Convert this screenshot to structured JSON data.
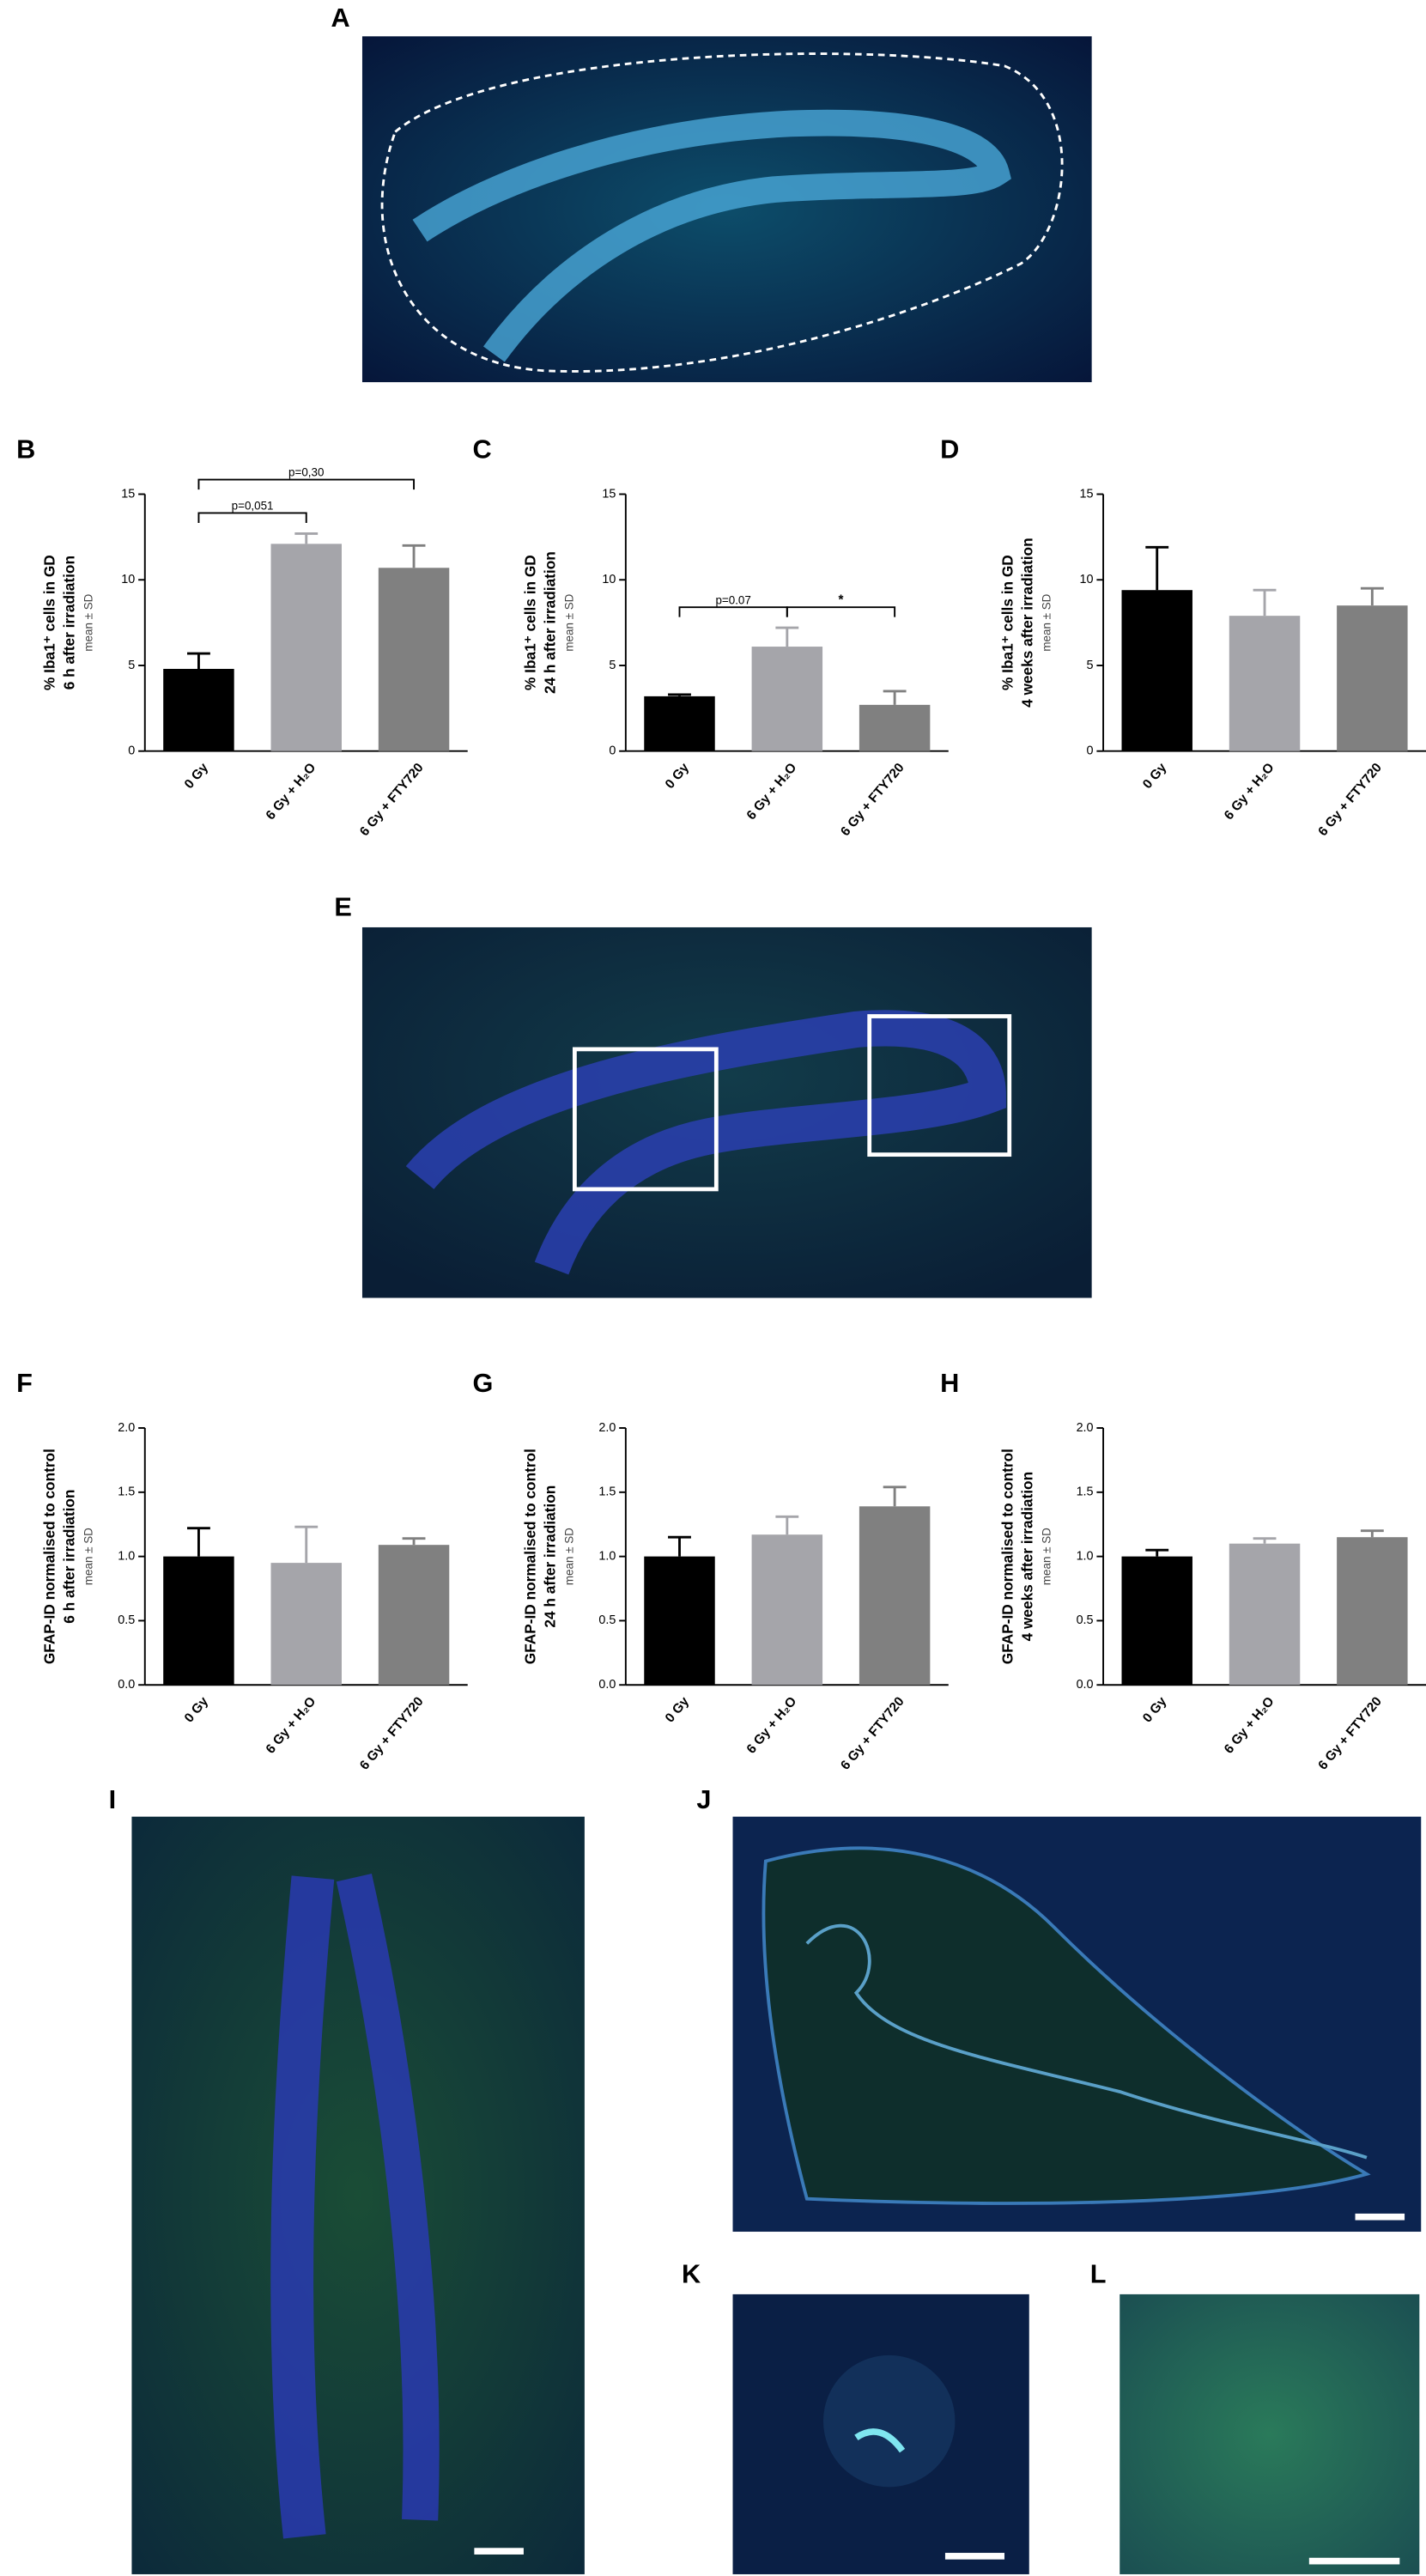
{
  "images": [
    {
      "label": "A"
    },
    {
      "label": "E"
    },
    {
      "label": "I"
    },
    {
      "label": "J"
    },
    {
      "label": "K"
    },
    {
      "label": "L"
    }
  ],
  "chart_data": [
    {
      "type": "bar",
      "label": "B",
      "ylabel": [
        "% Iba1⁺ cells in GD",
        "6 h after irradiation"
      ],
      "ylabel_note": "mean ± SD",
      "categories": [
        "0 Gy",
        "6 Gy + H₂O",
        "6 Gy + FTY720"
      ],
      "values": [
        4.8,
        12.1,
        10.7
      ],
      "errors": [
        0.9,
        0.6,
        1.3
      ],
      "colors": [
        "#000000",
        "#a5a5aa",
        "#808080"
      ],
      "ylim": [
        0,
        15
      ],
      "yticks": [
        0,
        5,
        10,
        15
      ],
      "annotations": [
        {
          "text": "p=0,051",
          "from": 0,
          "to": 1
        },
        {
          "text": "p=0,30",
          "from": 0,
          "to": 2
        }
      ]
    },
    {
      "type": "bar",
      "label": "C",
      "ylabel": [
        "% Iba1⁺ cells in GD",
        "24 h after irradiation"
      ],
      "ylabel_note": "mean ± SD",
      "categories": [
        "0 Gy",
        "6 Gy + H₂O",
        "6 Gy + FTY720"
      ],
      "values": [
        3.2,
        6.1,
        2.7
      ],
      "errors": [
        0.1,
        1.1,
        0.8
      ],
      "colors": [
        "#000000",
        "#a5a5aa",
        "#808080"
      ],
      "ylim": [
        0,
        15
      ],
      "yticks": [
        0,
        5,
        10,
        15
      ],
      "annotations": [
        {
          "text": "p=0.07",
          "from": 0,
          "to": 1
        },
        {
          "text": "*",
          "from": 1,
          "to": 2
        }
      ]
    },
    {
      "type": "bar",
      "label": "D",
      "ylabel": [
        "% Iba1⁺ cells in GD",
        "4 weeks after irradiation"
      ],
      "ylabel_note": "mean ± SD",
      "categories": [
        "0 Gy",
        "6 Gy + H₂O",
        "6 Gy + FTY720"
      ],
      "values": [
        9.4,
        7.9,
        8.5
      ],
      "errors": [
        2.5,
        1.5,
        1.0
      ],
      "colors": [
        "#000000",
        "#a5a5aa",
        "#808080"
      ],
      "ylim": [
        0,
        15
      ],
      "yticks": [
        0,
        5,
        10,
        15
      ]
    },
    {
      "type": "bar",
      "label": "F",
      "ylabel": [
        "GFAP-ID normalised to control",
        "6 h after irradiation"
      ],
      "ylabel_note": "mean ± SD",
      "categories": [
        "0 Gy",
        "6 Gy + H₂O",
        "6 Gy + FTY720"
      ],
      "values": [
        1.0,
        0.95,
        1.09
      ],
      "errors": [
        0.22,
        0.28,
        0.05
      ],
      "colors": [
        "#000000",
        "#a5a5aa",
        "#808080"
      ],
      "ylim": [
        0,
        2
      ],
      "yticks": [
        {
          "value": 0,
          "label": "0.0"
        },
        {
          "value": 0.5,
          "label": "0.5"
        },
        {
          "value": 1,
          "label": "1.0"
        },
        {
          "value": 1.5,
          "label": "1.5"
        },
        {
          "value": 2,
          "label": "2.0"
        }
      ]
    },
    {
      "type": "bar",
      "label": "G",
      "ylabel": [
        "GFAP-ID normalised to control",
        "24 h after irradiation"
      ],
      "ylabel_note": "mean ± SD",
      "categories": [
        "0 Gy",
        "6 Gy + H₂O",
        "6 Gy + FTY720"
      ],
      "values": [
        1.0,
        1.17,
        1.39
      ],
      "errors": [
        0.15,
        0.14,
        0.15
      ],
      "colors": [
        "#000000",
        "#a5a5aa",
        "#808080"
      ],
      "ylim": [
        0,
        2
      ],
      "yticks": [
        {
          "value": 0,
          "label": "0.0"
        },
        {
          "value": 0.5,
          "label": "0.5"
        },
        {
          "value": 1,
          "label": "1.0"
        },
        {
          "value": 1.5,
          "label": "1.5"
        },
        {
          "value": 2,
          "label": "2.0"
        }
      ]
    },
    {
      "type": "bar",
      "label": "H",
      "ylabel": [
        "GFAP-ID normalised to control",
        "4 weeks after irradiation"
      ],
      "ylabel_note": "mean ± SD",
      "categories": [
        "0 Gy",
        "6 Gy + H₂O",
        "6 Gy + FTY720"
      ],
      "values": [
        1.0,
        1.1,
        1.15
      ],
      "errors": [
        0.05,
        0.04,
        0.05
      ],
      "colors": [
        "#000000",
        "#a5a5aa",
        "#808080"
      ],
      "ylim": [
        0,
        2
      ],
      "yticks": [
        {
          "value": 0,
          "label": "0.0"
        },
        {
          "value": 0.5,
          "label": "0.5"
        },
        {
          "value": 1,
          "label": "1.0"
        },
        {
          "value": 1.5,
          "label": "1.5"
        },
        {
          "value": 2,
          "label": "2.0"
        }
      ]
    }
  ]
}
